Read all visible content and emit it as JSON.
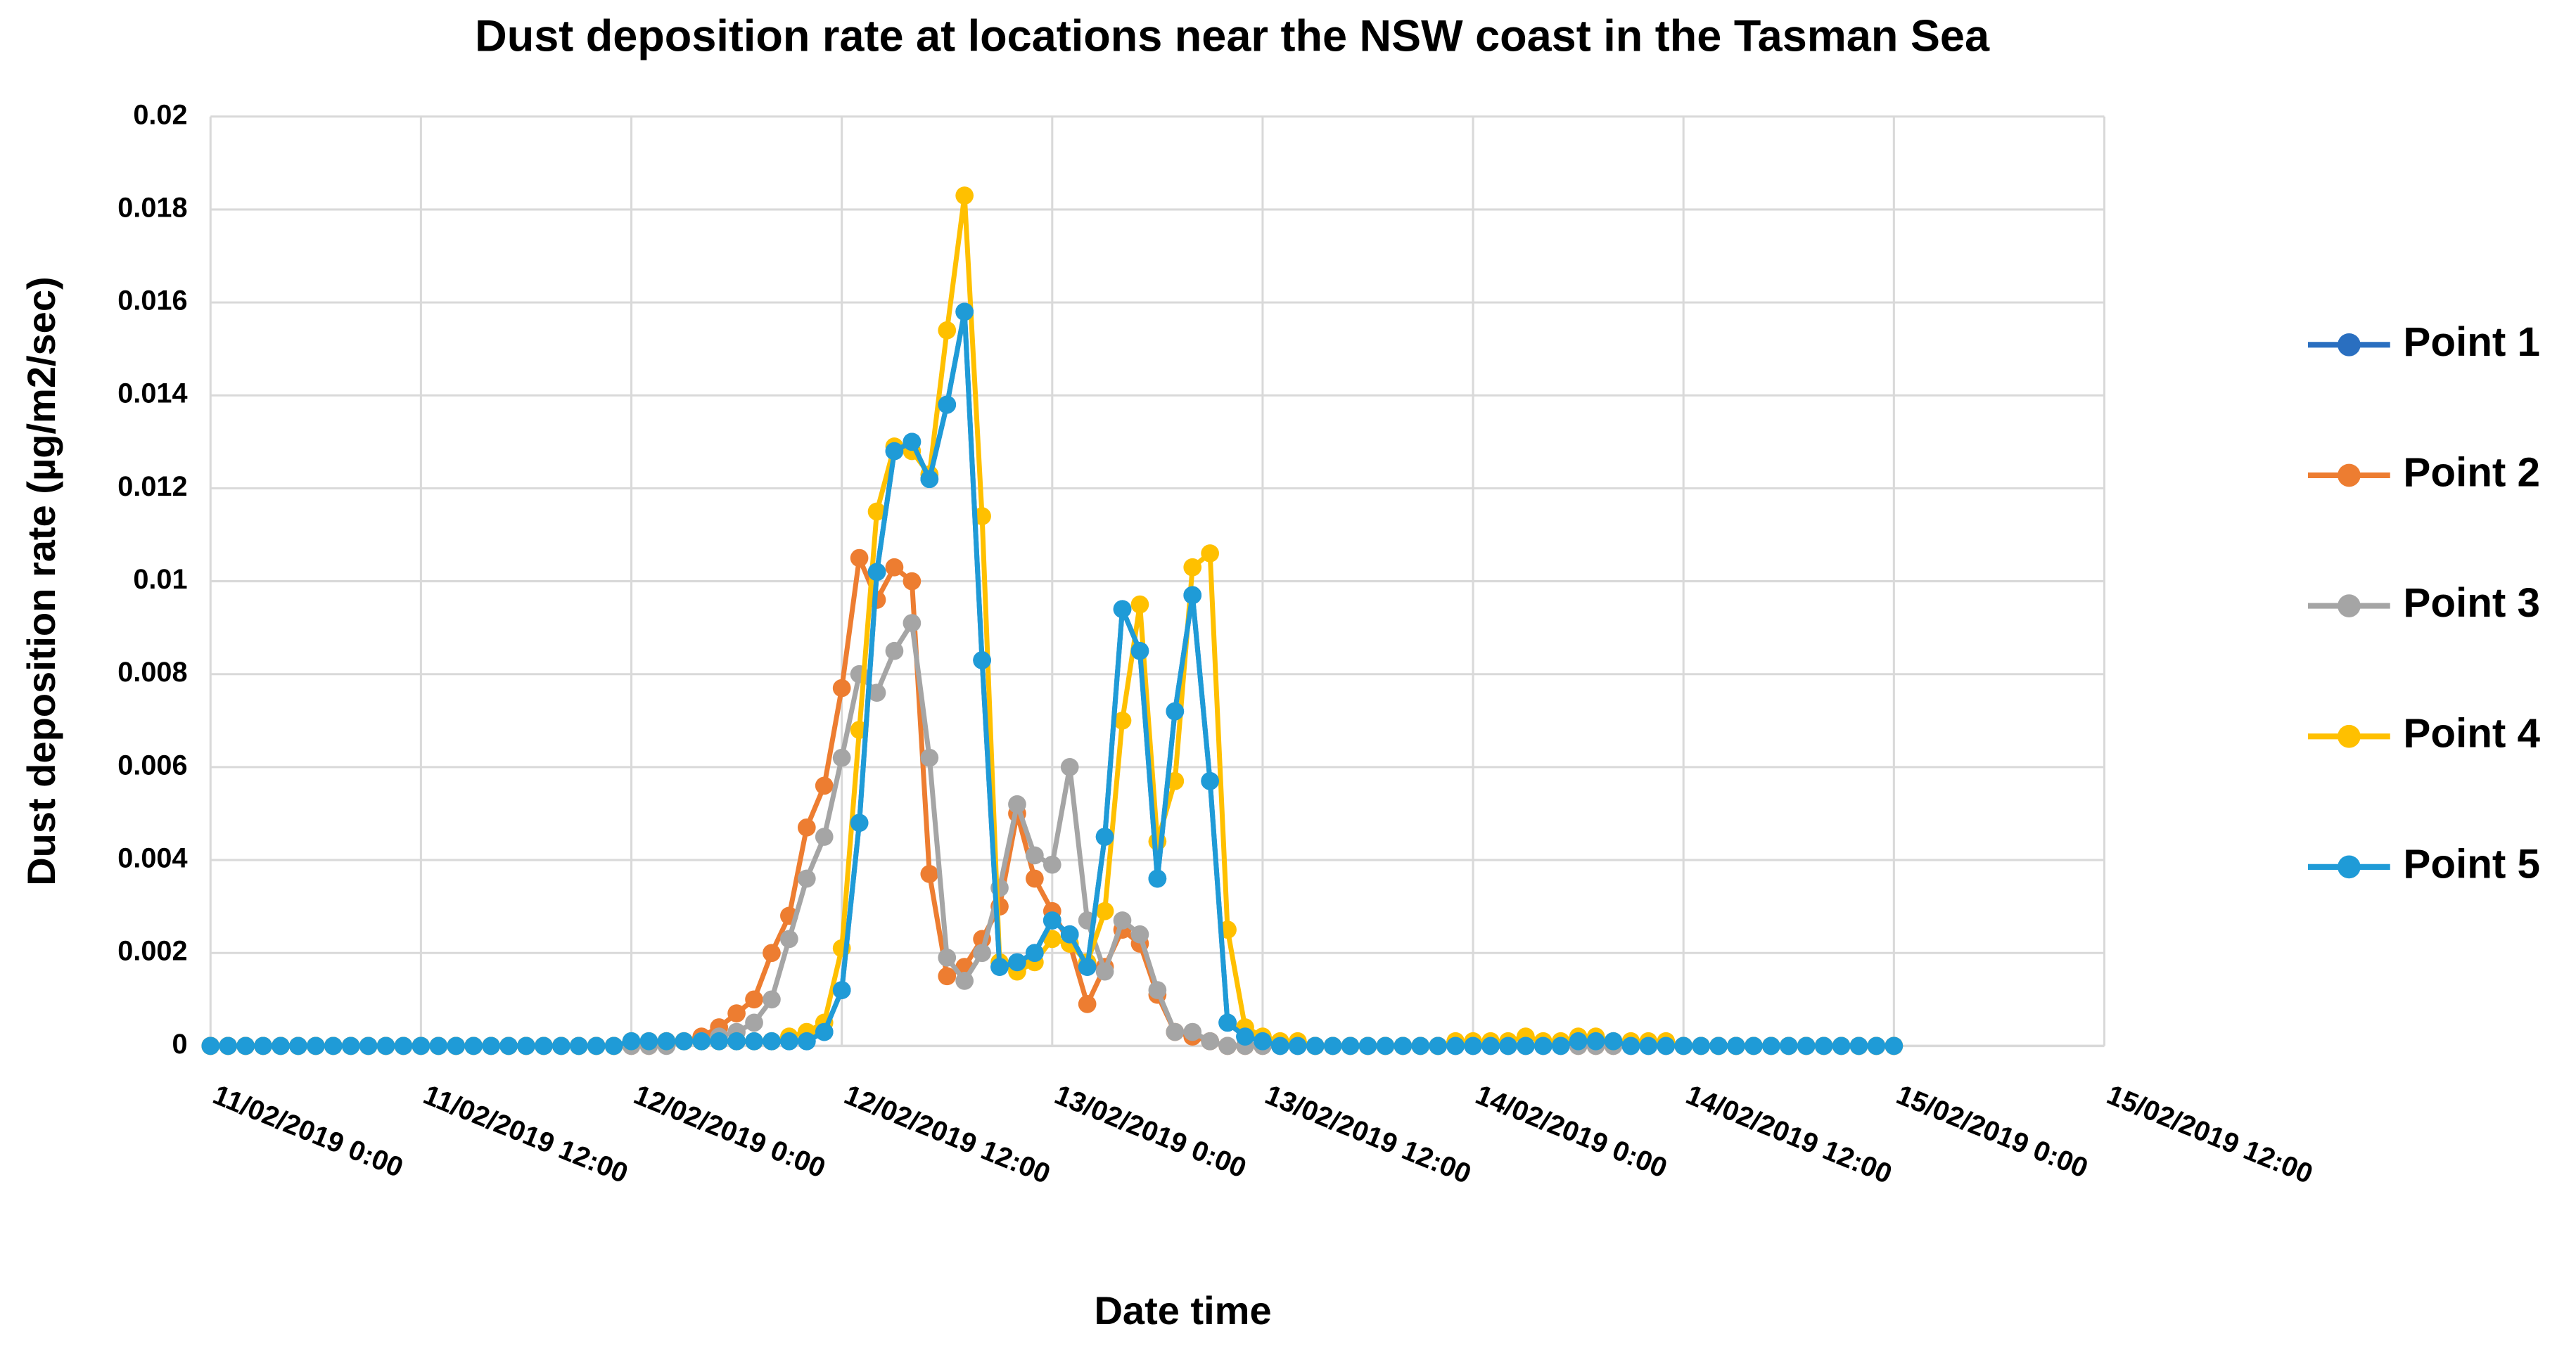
{
  "chart_data": {
    "type": "line",
    "title": "Dust deposition rate at locations near the NSW coast in the Tasman Sea",
    "x_label": "Date time",
    "y_label": "Dust deposition rate (µg/m2/sec)",
    "x": [
      0,
      1,
      2,
      3,
      4,
      5,
      6,
      7,
      8,
      9,
      10,
      11,
      12,
      13,
      14,
      15,
      16,
      17,
      18,
      19,
      20,
      21,
      22,
      23,
      24,
      25,
      26,
      27,
      28,
      29,
      30,
      31,
      32,
      33,
      34,
      35,
      36,
      37,
      38,
      39,
      40,
      41,
      42,
      43,
      44,
      45,
      46,
      47,
      48,
      49,
      50,
      51,
      52,
      53,
      54,
      55,
      56,
      57,
      58,
      59,
      60,
      61,
      62,
      63,
      64,
      65,
      66,
      67,
      68,
      69,
      70,
      71,
      72,
      73,
      74,
      75,
      76,
      77,
      78,
      79,
      80,
      81,
      82,
      83,
      84,
      85,
      86,
      87,
      88,
      89,
      90,
      91,
      92,
      93,
      94,
      95,
      96
    ],
    "xlim": [
      0,
      108
    ],
    "xticks": [
      {
        "value": 0,
        "label": "11/02/2019 0:00"
      },
      {
        "value": 12,
        "label": "11/02/2019 12:00"
      },
      {
        "value": 24,
        "label": "12/02/2019 0:00"
      },
      {
        "value": 36,
        "label": "12/02/2019 12:00"
      },
      {
        "value": 48,
        "label": "13/02/2019 0:00"
      },
      {
        "value": 60,
        "label": "13/02/2019 12:00"
      },
      {
        "value": 72,
        "label": "14/02/2019 0:00"
      },
      {
        "value": 84,
        "label": "14/02/2019 12:00"
      },
      {
        "value": 96,
        "label": "15/02/2019 0:00"
      },
      {
        "value": 108,
        "label": "15/02/2019 12:00"
      }
    ],
    "ylim": [
      0,
      0.02
    ],
    "yticks": [
      0,
      0.002,
      0.004,
      0.006,
      0.008,
      0.01,
      0.012,
      0.014,
      0.016,
      0.018,
      0.02
    ],
    "grid": true,
    "legend": "right",
    "series": [
      {
        "name": "Point 1",
        "color": "#2a6fc0",
        "values": [
          0,
          0,
          0,
          0,
          0,
          0,
          0,
          0,
          0,
          0,
          0,
          0,
          0,
          0,
          0,
          0,
          0,
          0,
          0,
          0,
          0,
          0,
          0,
          0,
          0.0001,
          0.0001,
          0.0001,
          0.0001,
          0.0001,
          0.0001,
          0.0001,
          0.0001,
          0.0001,
          0.0001,
          0.0001,
          0.0003,
          0.0012,
          0.0048,
          0.0102,
          0.0128,
          0.013,
          0.0122,
          0.0138,
          0.0158,
          0.0083,
          0.0017,
          0.0018,
          0.002,
          0.0027,
          0.0024,
          0.0017,
          0.0045,
          0.0094,
          0.0085,
          0.0036,
          0.0072,
          0.0097,
          0.0057,
          0.0005,
          0.0002,
          0.0001,
          0,
          0,
          0,
          0,
          0,
          0,
          0,
          0,
          0,
          0,
          0,
          0,
          0,
          0,
          0,
          0,
          0,
          0.0001,
          0.0001,
          0.0001,
          0,
          0,
          0,
          0,
          0,
          0,
          0,
          0,
          0,
          0,
          0,
          0,
          0,
          0,
          0,
          0
        ]
      },
      {
        "name": "Point 2",
        "color": "#ed7d31",
        "values": [
          0,
          0,
          0,
          0,
          0,
          0,
          0,
          0,
          0,
          0,
          0,
          0,
          0,
          0,
          0,
          0,
          0,
          0,
          0,
          0,
          0,
          0,
          0,
          0,
          0,
          0,
          0.0001,
          0.0001,
          0.0002,
          0.0004,
          0.0007,
          0.001,
          0.002,
          0.0028,
          0.0047,
          0.0056,
          0.0077,
          0.0105,
          0.0096,
          0.0103,
          0.01,
          0.0037,
          0.0015,
          0.0017,
          0.0023,
          0.003,
          0.005,
          0.0036,
          0.0029,
          0.0022,
          0.0009,
          0.0017,
          0.0025,
          0.0022,
          0.0011,
          0.0003,
          0.0002,
          0.0001,
          0,
          0,
          0,
          0,
          0,
          0,
          0,
          0,
          0,
          0,
          0,
          0,
          0,
          0,
          0,
          0,
          0,
          0,
          0,
          0,
          0,
          0,
          0,
          0,
          0,
          0,
          0,
          0,
          0,
          0,
          0,
          0,
          0,
          0,
          0,
          0,
          0,
          0,
          0
        ]
      },
      {
        "name": "Point 3",
        "color": "#a5a5a5",
        "values": [
          0,
          0,
          0,
          0,
          0,
          0,
          0,
          0,
          0,
          0,
          0,
          0,
          0,
          0,
          0,
          0,
          0,
          0,
          0,
          0,
          0,
          0,
          0,
          0,
          0,
          0,
          0,
          0.0001,
          0.0001,
          0.0002,
          0.0003,
          0.0005,
          0.001,
          0.0023,
          0.0036,
          0.0045,
          0.0062,
          0.008,
          0.0076,
          0.0085,
          0.0091,
          0.0062,
          0.0019,
          0.0014,
          0.002,
          0.0034,
          0.0052,
          0.0041,
          0.0039,
          0.006,
          0.0027,
          0.0016,
          0.0027,
          0.0024,
          0.0012,
          0.0003,
          0.0003,
          0.0001,
          0,
          0,
          0,
          0,
          0,
          0,
          0,
          0,
          0,
          0,
          0,
          0,
          0,
          0,
          0,
          0,
          0,
          0,
          0,
          0,
          0,
          0,
          0,
          0,
          0,
          0,
          0,
          0,
          0,
          0,
          0,
          0,
          0,
          0,
          0,
          0,
          0,
          0,
          0
        ]
      },
      {
        "name": "Point 4",
        "color": "#ffc000",
        "values": [
          0,
          0,
          0,
          0,
          0,
          0,
          0,
          0,
          0,
          0,
          0,
          0,
          0,
          0,
          0,
          0,
          0,
          0,
          0,
          0,
          0,
          0,
          0,
          0,
          0.0001,
          0.0001,
          0.0001,
          0.0001,
          0.0001,
          0.0001,
          0.0001,
          0.0001,
          0.0001,
          0.0002,
          0.0003,
          0.0005,
          0.0021,
          0.0068,
          0.0115,
          0.0129,
          0.0128,
          0.0123,
          0.0154,
          0.0183,
          0.0114,
          0.0018,
          0.0016,
          0.0018,
          0.0023,
          0.0022,
          0.0018,
          0.0029,
          0.007,
          0.0095,
          0.0044,
          0.0057,
          0.0103,
          0.0106,
          0.0025,
          0.0004,
          0.0002,
          0.0001,
          0.0001,
          0,
          0,
          0,
          0,
          0,
          0,
          0,
          0,
          0.0001,
          0.0001,
          0.0001,
          0.0001,
          0.0002,
          0.0001,
          0.0001,
          0.0002,
          0.0002,
          0.0001,
          0.0001,
          0.0001,
          0.0001,
          0,
          0,
          0,
          0,
          0,
          0,
          0,
          0,
          0,
          0,
          0,
          0,
          0
        ]
      },
      {
        "name": "Point 5",
        "color": "#1f9bd7",
        "values": [
          0,
          0,
          0,
          0,
          0,
          0,
          0,
          0,
          0,
          0,
          0,
          0,
          0,
          0,
          0,
          0,
          0,
          0,
          0,
          0,
          0,
          0,
          0,
          0,
          0.0001,
          0.0001,
          0.0001,
          0.0001,
          0.0001,
          0.0001,
          0.0001,
          0.0001,
          0.0001,
          0.0001,
          0.0001,
          0.0003,
          0.0012,
          0.0048,
          0.0102,
          0.0128,
          0.013,
          0.0122,
          0.0138,
          0.0158,
          0.0083,
          0.0017,
          0.0018,
          0.002,
          0.0027,
          0.0024,
          0.0017,
          0.0045,
          0.0094,
          0.0085,
          0.0036,
          0.0072,
          0.0097,
          0.0057,
          0.0005,
          0.0002,
          0.0001,
          0,
          0,
          0,
          0,
          0,
          0,
          0,
          0,
          0,
          0,
          0,
          0,
          0,
          0,
          0,
          0,
          0,
          0.0001,
          0.0001,
          0.0001,
          0,
          0,
          0,
          0,
          0,
          0,
          0,
          0,
          0,
          0,
          0,
          0,
          0,
          0,
          0,
          0
        ]
      }
    ]
  }
}
